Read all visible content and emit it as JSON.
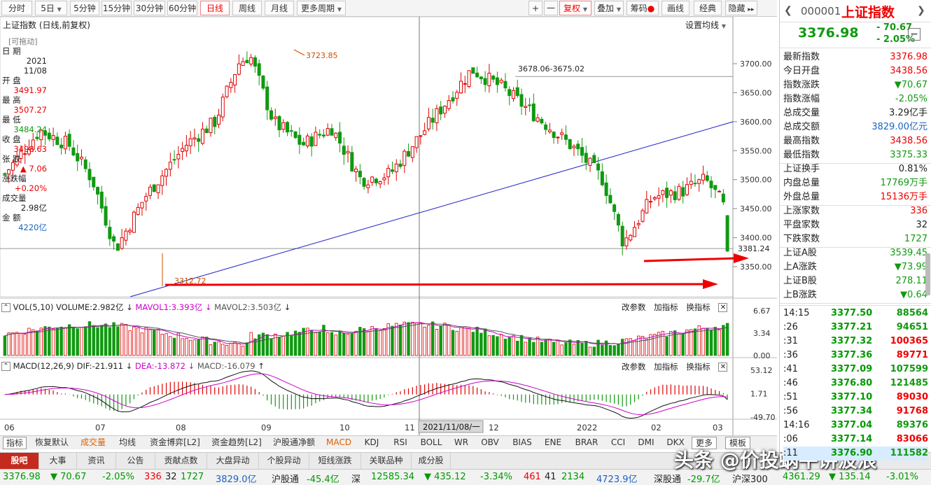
{
  "toolbar": {
    "periods": [
      "分时",
      "5日",
      "5分钟",
      "15分钟",
      "30分钟",
      "60分钟",
      "日线",
      "周线",
      "月线",
      "更多周期"
    ],
    "active": "日线",
    "right_buttons": [
      "+",
      "一",
      "复权",
      "叠加",
      "筹码",
      "画线",
      "经典",
      "隐藏"
    ],
    "more_arrow": "▸▸"
  },
  "chart_title": "上证指数 (日线,前复权)",
  "ma_settings": "设置均线",
  "drag_label": "[可拖动]",
  "info": {
    "date_label": "日 期",
    "date_year": "2021",
    "date_md": "11/08",
    "open_label": "开 盘",
    "open": "3491.97",
    "high_label": "最 高",
    "high": "3507.27",
    "low_label": "最 低",
    "low": "3484.24",
    "close_label": "收 盘",
    "close": "3498.63",
    "chg_label": "张 跌",
    "chg": "▲ 7.06",
    "pct_label": "涨跌幅",
    "pct": "+0.20%",
    "vol_label": "成交量",
    "vol": "2.98亿",
    "amt_label": "金 额",
    "amt": "4220亿"
  },
  "annotations": {
    "high": "3723.85",
    "low": "3312.72",
    "range": "3678.06-3675.02",
    "current": "3381.24"
  },
  "price_axis": [
    "3700.00",
    "3650.00",
    "3600.00",
    "3550.00",
    "3500.00",
    "3450.00",
    "3400.00",
    "3350.00"
  ],
  "date_axis": [
    "06",
    "07",
    "08",
    "09",
    "10",
    "11",
    "2021/11/08/一",
    "12",
    "2022",
    "02",
    "03"
  ],
  "vol_header": {
    "name": "VOL(5,10)",
    "volume": "VOLUME:2.982亿",
    "ma1": "MAVOL1:3.393亿",
    "ma2": "MAVOL2:3.503亿"
  },
  "vol_axis": [
    "6.67",
    "3.34",
    "0.00"
  ],
  "macd_header": {
    "name": "MACD(12,26,9)",
    "dif": "DIF:-21.911",
    "dea": "DEA:-13.872",
    "macd": "MACD:-16.079"
  },
  "macd_axis": [
    "53.12",
    "1.71",
    "-49.70"
  ],
  "pane_buttons": [
    "改参数",
    "加指标",
    "换指标"
  ],
  "indicator_tabs": [
    "指标",
    "恢复默认",
    "成交量",
    "均线",
    "资金博弈[L2]",
    "资金趋势[L2]",
    "沪股通净额",
    "MACD",
    "KDJ",
    "RSI",
    "BOLL",
    "WR",
    "OBV",
    "BIAS",
    "ENE",
    "BRAR",
    "CCI",
    "DMI",
    "DKX",
    "更多",
    "模板"
  ],
  "news_tabs": [
    "股吧",
    "大事",
    "资讯",
    "公告",
    "贡献点数",
    "大盘异动",
    "个股异动",
    "短线涨跌",
    "关联品种",
    "成分股"
  ],
  "status": {
    "sh_index": "3376.98",
    "sh_chg": "▼ 70.67",
    "sh_pct": "-2.05%",
    "sh_up": "336",
    "sh_flat": "32",
    "sh_down": "1727",
    "sh_amt": "3829.0亿",
    "hgt_label": "沪股通",
    "hgt": "-45.4亿",
    "sz_label": "深",
    "sz_index": "12585.34",
    "sz_chg": "▼ 435.12",
    "sz_pct": "-3.34%",
    "sz_up": "461",
    "sz_flat": "41",
    "sz_down": "2134",
    "sz_amt": "4723.9亿",
    "sgt_label": "深股通",
    "sgt": "-29.7亿",
    "hs300_label": "沪深300",
    "hs300": "4361.29",
    "hs300_chg": "▼ 135.14",
    "hs300_pct": "-3.01%"
  },
  "watermark": "头条 @价投蜗牛讲波浪",
  "quote": {
    "code": "000001",
    "name": "上证指数",
    "price": "3376.98",
    "chg": "- 70.67",
    "pct": "- 2.05%",
    "rows": [
      [
        "最新指数",
        "3376.98",
        "red"
      ],
      [
        "今日开盘",
        "3438.56",
        "red"
      ],
      [
        "指数涨跌",
        "▼70.67",
        "green"
      ],
      [
        "指数涨幅",
        "-2.05%",
        "green"
      ],
      [
        "总成交量",
        "3.29亿手",
        "dark"
      ],
      [
        "总成交额",
        "3829.00亿元",
        "blue"
      ],
      [
        "最高指数",
        "3438.56",
        "red"
      ],
      [
        "最低指数",
        "3375.33",
        "green"
      ]
    ],
    "rows2": [
      [
        "上证换手",
        "0.81%",
        "dark"
      ],
      [
        "内盘总量",
        "17769万手",
        "green"
      ],
      [
        "外盘总量",
        "15136万手",
        "red"
      ]
    ],
    "rows3": [
      [
        "上涨家数",
        "336",
        "red"
      ],
      [
        "平盘家数",
        "32",
        "dark"
      ],
      [
        "下跌家数",
        "1727",
        "green"
      ]
    ],
    "rows4": [
      [
        "上证A股",
        "3539.45",
        "green"
      ],
      [
        "上A涨跌",
        "▼73.99",
        "green"
      ],
      [
        "上证B股",
        "278.11",
        "green"
      ],
      [
        "上B涨跌",
        "▼0.64",
        "green"
      ]
    ],
    "ticks": [
      [
        "14:15",
        "3377.50",
        "88564",
        "green"
      ],
      [
        ":26",
        "3377.21",
        "94651",
        "green"
      ],
      [
        ":31",
        "3377.32",
        "100365",
        "red"
      ],
      [
        ":36",
        "3377.36",
        "89771",
        "red"
      ],
      [
        ":41",
        "3377.09",
        "107599",
        "green"
      ],
      [
        ":46",
        "3376.80",
        "121485",
        "green"
      ],
      [
        ":51",
        "3377.10",
        "89030",
        "red"
      ],
      [
        ":56",
        "3377.34",
        "91768",
        "red"
      ],
      [
        "14:16",
        "3377.04",
        "89376",
        "green"
      ],
      [
        ":06",
        "3377.14",
        "83066",
        "red"
      ],
      [
        ":11",
        "3376.90",
        "111582",
        "green"
      ]
    ]
  },
  "colors": {
    "up": "#e00000",
    "down": "#119911",
    "accent": "#e06000",
    "ma1": "#cc00cc",
    "blue": "#1c63c0"
  },
  "icons": [
    "chevron-left-icon",
    "chevron-right-icon",
    "dropdown-arrow-icon",
    "close-icon",
    "minimize-icon"
  ]
}
